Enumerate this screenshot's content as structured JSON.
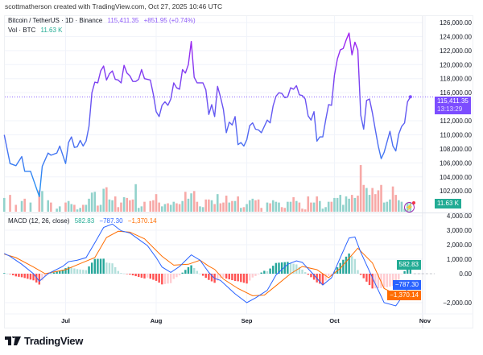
{
  "credit": "scottmatherson created with TradingView.com, Oct 27, 2025 10:46 UTC",
  "legend": {
    "symbol": "Bitcoin / TetherUS · 1D · Binance",
    "price": "115,411.35",
    "change": "+851.95 (+0.74%)",
    "vol_label": "Vol · BTC",
    "vol_value": "11.63 K",
    "macd_label": "MACD (12, 26, close)",
    "macd_hist": "582.83",
    "macd_line": "−787.30",
    "macd_signal": "−1,370.14"
  },
  "tags": {
    "price": "115,411.35",
    "countdown": "13:13:29",
    "volume": "11.63 K",
    "hist": "582.83",
    "macd": "−787.30",
    "signal": "−1,370.14"
  },
  "brand": "TradingView",
  "colors": {
    "line_high": "#a31ef0",
    "line_low": "#2196f3",
    "up_vol": "#92d2cc",
    "down_vol": "#f7a9a7",
    "macd": "#2962ff",
    "signal": "#ff6d00",
    "hist_up_strong": "#26a69a",
    "hist_up_weak": "#b2dfdb",
    "hist_down_strong": "#ff5252",
    "hist_down_weak": "#ffcdd2",
    "price_tag": "#7c4dff",
    "vol_tag": "#22ab94"
  },
  "icons": {
    "alert": "lightning-bolt-icon"
  },
  "chart_data": {
    "type": "line",
    "price_axis": {
      "ticks": [
        "126,000.00",
        "124,000.00",
        "122,000.00",
        "120,000.00",
        "118,000.00",
        "116,000.00",
        "112,000.00",
        "110,000.00",
        "108,000.00",
        "106,000.00",
        "104,000.00",
        "102,000.00"
      ],
      "range": [
        100000,
        127000
      ]
    },
    "macd_axis": {
      "ticks": [
        "4,000.00",
        "3,000.00",
        "2,000.00",
        "1,000.00",
        "0.00",
        "−2,000.00"
      ],
      "range": [
        -2500,
        4000
      ]
    },
    "x_ticks": [
      "Jul",
      "Aug",
      "Sep",
      "Oct",
      "Nov"
    ],
    "x_tick_dates": [
      "2025-07-01",
      "2025-08-01",
      "2025-09-01",
      "2025-10-01",
      "2025-11-01"
    ],
    "x_range": [
      "2025-06-10",
      "2025-11-05"
    ],
    "grid": true,
    "price": [
      [
        "2025-06-10",
        110000,
        18
      ],
      [
        "2025-06-12",
        105900,
        22
      ],
      [
        "2025-06-14",
        105600,
        9
      ],
      [
        "2025-06-16",
        106900,
        14
      ],
      [
        "2025-06-17",
        104800,
        17
      ],
      [
        "2025-06-19",
        104800,
        12
      ],
      [
        "2025-06-22",
        101200,
        28
      ],
      [
        "2025-06-23",
        105500,
        27
      ],
      [
        "2025-06-25",
        107400,
        15
      ],
      [
        "2025-06-26",
        107100,
        12
      ],
      [
        "2025-06-28",
        107400,
        4
      ],
      [
        "2025-06-29",
        108400,
        7
      ],
      [
        "2025-07-01",
        105900,
        12
      ],
      [
        "2025-07-02",
        108900,
        14
      ],
      [
        "2025-07-03",
        109700,
        10
      ],
      [
        "2025-07-04",
        108200,
        9
      ],
      [
        "2025-07-05",
        108300,
        3
      ],
      [
        "2025-07-06",
        109200,
        5
      ],
      [
        "2025-07-07",
        108400,
        9
      ],
      [
        "2025-07-08",
        109100,
        9
      ],
      [
        "2025-07-09",
        111200,
        17
      ],
      [
        "2025-07-10",
        116000,
        25
      ],
      [
        "2025-07-11",
        117500,
        26
      ],
      [
        "2025-07-12",
        117400,
        8
      ],
      [
        "2025-07-13",
        119100,
        9
      ],
      [
        "2025-07-14",
        119800,
        30
      ],
      [
        "2025-07-15",
        117800,
        32
      ],
      [
        "2025-07-16",
        118700,
        16
      ],
      [
        "2025-07-17",
        119100,
        15
      ],
      [
        "2025-07-18",
        117900,
        20
      ],
      [
        "2025-07-19",
        117800,
        6
      ],
      [
        "2025-07-20",
        117400,
        12
      ],
      [
        "2025-07-21",
        119900,
        19
      ],
      [
        "2025-07-22",
        118800,
        18
      ],
      [
        "2025-07-23",
        118400,
        15
      ],
      [
        "2025-07-24",
        117600,
        16
      ],
      [
        "2025-07-25",
        117600,
        36
      ],
      [
        "2025-07-26",
        117900,
        5
      ],
      [
        "2025-07-27",
        119300,
        7
      ],
      [
        "2025-07-28",
        118000,
        13
      ],
      [
        "2025-07-30",
        117800,
        14
      ],
      [
        "2025-07-31",
        115800,
        15
      ],
      [
        "2025-08-01",
        113300,
        23
      ],
      [
        "2025-08-02",
        112600,
        12
      ],
      [
        "2025-08-03",
        114200,
        7
      ],
      [
        "2025-08-04",
        114700,
        10
      ],
      [
        "2025-08-05",
        114200,
        11
      ],
      [
        "2025-08-06",
        115100,
        9
      ],
      [
        "2025-08-07",
        117400,
        13
      ],
      [
        "2025-08-08",
        116700,
        11
      ],
      [
        "2025-08-09",
        116500,
        10
      ],
      [
        "2025-08-10",
        119300,
        14
      ],
      [
        "2025-08-11",
        118800,
        26
      ],
      [
        "2025-08-12",
        120000,
        17
      ],
      [
        "2025-08-13",
        123300,
        24
      ],
      [
        "2025-08-14",
        118200,
        27
      ],
      [
        "2025-08-15",
        117400,
        13
      ],
      [
        "2025-08-16",
        117400,
        7
      ],
      [
        "2025-08-17",
        117400,
        6
      ],
      [
        "2025-08-18",
        116400,
        16
      ],
      [
        "2025-08-19",
        112900,
        16
      ],
      [
        "2025-08-20",
        114300,
        15
      ],
      [
        "2025-08-21",
        112600,
        10
      ],
      [
        "2025-08-22",
        116900,
        23
      ],
      [
        "2025-08-23",
        115400,
        11
      ],
      [
        "2025-08-24",
        113600,
        12
      ],
      [
        "2025-08-25",
        110300,
        21
      ],
      [
        "2025-08-26",
        111800,
        12
      ],
      [
        "2025-08-27",
        111400,
        14
      ],
      [
        "2025-08-28",
        112600,
        14
      ],
      [
        "2025-08-29",
        108600,
        20
      ],
      [
        "2025-08-30",
        108900,
        5
      ],
      [
        "2025-08-31",
        108400,
        6
      ],
      [
        "2025-09-01",
        109300,
        10
      ],
      [
        "2025-09-02",
        111300,
        15
      ],
      [
        "2025-09-03",
        111700,
        17
      ],
      [
        "2025-09-04",
        110800,
        15
      ],
      [
        "2025-09-05",
        110700,
        16
      ],
      [
        "2025-09-06",
        110300,
        5
      ],
      [
        "2025-09-08",
        112100,
        12
      ],
      [
        "2025-09-09",
        111700,
        11
      ],
      [
        "2025-09-10",
        114100,
        15
      ],
      [
        "2025-09-11",
        115500,
        13
      ],
      [
        "2025-09-12",
        116000,
        12
      ],
      [
        "2025-09-13",
        115900,
        6
      ],
      [
        "2025-09-14",
        115300,
        5
      ],
      [
        "2025-09-15",
        115400,
        13
      ],
      [
        "2025-09-16",
        116700,
        13
      ],
      [
        "2025-09-17",
        116500,
        19
      ],
      [
        "2025-09-18",
        117000,
        14
      ],
      [
        "2025-09-19",
        115700,
        12
      ],
      [
        "2025-09-20",
        115600,
        4
      ],
      [
        "2025-09-21",
        115100,
        3
      ],
      [
        "2025-09-22",
        112700,
        20
      ],
      [
        "2025-09-23",
        112100,
        12
      ],
      [
        "2025-09-24",
        113300,
        12
      ],
      [
        "2025-09-25",
        109100,
        20
      ],
      [
        "2025-09-26",
        109700,
        14
      ],
      [
        "2025-09-27",
        109700,
        4
      ],
      [
        "2025-09-28",
        112100,
        6
      ],
      [
        "2025-09-29",
        114300,
        13
      ],
      [
        "2025-09-30",
        114200,
        13
      ],
      [
        "2025-10-01",
        118500,
        18
      ],
      [
        "2025-10-02",
        120800,
        18
      ],
      [
        "2025-10-03",
        122100,
        22
      ],
      [
        "2025-10-04",
        122300,
        9
      ],
      [
        "2025-10-05",
        123500,
        20
      ],
      [
        "2025-10-06",
        124500,
        17
      ],
      [
        "2025-10-07",
        121400,
        22
      ],
      [
        "2025-10-08",
        123200,
        18
      ],
      [
        "2025-10-09",
        122100,
        21
      ],
      [
        "2025-10-10",
        112800,
        61
      ],
      [
        "2025-10-11",
        110800,
        35
      ],
      [
        "2025-10-12",
        114900,
        31
      ],
      [
        "2025-10-13",
        115100,
        22
      ],
      [
        "2025-10-14",
        113100,
        31
      ],
      [
        "2025-10-15",
        110700,
        23
      ],
      [
        "2025-10-16",
        108400,
        28
      ],
      [
        "2025-10-17",
        106600,
        35
      ],
      [
        "2025-10-18",
        107500,
        12
      ],
      [
        "2025-10-19",
        109000,
        13
      ],
      [
        "2025-10-20",
        110500,
        16
      ],
      [
        "2025-10-21",
        108400,
        33
      ],
      [
        "2025-10-22",
        107700,
        22
      ],
      [
        "2025-10-23",
        110100,
        15
      ],
      [
        "2025-10-24",
        111200,
        13
      ],
      [
        "2025-10-25",
        111700,
        4
      ],
      [
        "2025-10-26",
        114700,
        12
      ],
      [
        "2025-10-27",
        115411.35,
        11.63
      ]
    ],
    "price_columns": [
      "date",
      "close",
      "volume_k_btc"
    ],
    "macd": [
      [
        "2025-06-10",
        1390
      ],
      [
        "2025-06-12",
        1200
      ],
      [
        "2025-06-16",
        650
      ],
      [
        "2025-06-20",
        0
      ],
      [
        "2025-06-22",
        -520
      ],
      [
        "2025-06-25",
        0
      ],
      [
        "2025-06-30",
        500
      ],
      [
        "2025-07-02",
        830
      ],
      [
        "2025-07-05",
        930
      ],
      [
        "2025-07-08",
        1110
      ],
      [
        "2025-07-11",
        2130
      ],
      [
        "2025-07-14",
        3190
      ],
      [
        "2025-07-17",
        3430
      ],
      [
        "2025-07-20",
        2960
      ],
      [
        "2025-07-23",
        2810
      ],
      [
        "2025-07-26",
        2370
      ],
      [
        "2025-07-29",
        1940
      ],
      [
        "2025-08-01",
        1110
      ],
      [
        "2025-08-03",
        460
      ],
      [
        "2025-08-06",
        90
      ],
      [
        "2025-08-09",
        500
      ],
      [
        "2025-08-13",
        1300
      ],
      [
        "2025-08-16",
        930
      ],
      [
        "2025-08-19",
        90
      ],
      [
        "2025-08-21",
        -330
      ],
      [
        "2025-08-23",
        -460
      ],
      [
        "2025-08-26",
        -1020
      ],
      [
        "2025-08-28",
        -1390
      ],
      [
        "2025-09-01",
        -2000
      ],
      [
        "2025-09-04",
        -1670
      ],
      [
        "2025-09-08",
        -1150
      ],
      [
        "2025-09-11",
        -90
      ],
      [
        "2025-09-15",
        650
      ],
      [
        "2025-09-18",
        890
      ],
      [
        "2025-09-20",
        780
      ],
      [
        "2025-09-24",
        -90
      ],
      [
        "2025-09-27",
        -780
      ],
      [
        "2025-09-30",
        -280
      ],
      [
        "2025-10-03",
        1110
      ],
      [
        "2025-10-06",
        2460
      ],
      [
        "2025-10-08",
        2540
      ],
      [
        "2025-10-10",
        1480
      ],
      [
        "2025-10-14",
        -280
      ],
      [
        "2025-10-18",
        -2000
      ],
      [
        "2025-10-22",
        -2220
      ],
      [
        "2025-10-27",
        -787.3
      ]
    ],
    "signal": [
      [
        "2025-06-10",
        1350
      ],
      [
        "2025-06-14",
        1110
      ],
      [
        "2025-06-20",
        460
      ],
      [
        "2025-06-24",
        0
      ],
      [
        "2025-07-01",
        280
      ],
      [
        "2025-07-06",
        700
      ],
      [
        "2025-07-11",
        1110
      ],
      [
        "2025-07-15",
        2500
      ],
      [
        "2025-07-19",
        2930
      ],
      [
        "2025-07-23",
        2870
      ],
      [
        "2025-07-28",
        2410
      ],
      [
        "2025-08-03",
        1200
      ],
      [
        "2025-08-07",
        590
      ],
      [
        "2025-08-12",
        650
      ],
      [
        "2025-08-16",
        930
      ],
      [
        "2025-08-19",
        520
      ],
      [
        "2025-08-21",
        300
      ],
      [
        "2025-08-24",
        -370
      ],
      [
        "2025-08-29",
        -1020
      ],
      [
        "2025-09-03",
        -1520
      ],
      [
        "2025-09-07",
        -1480
      ],
      [
        "2025-09-11",
        -830
      ],
      [
        "2025-09-16",
        0
      ],
      [
        "2025-09-20",
        500
      ],
      [
        "2025-09-25",
        280
      ],
      [
        "2025-09-29",
        -280
      ],
      [
        "2025-10-03",
        370
      ],
      [
        "2025-10-09",
        1760
      ],
      [
        "2025-10-14",
        740
      ],
      [
        "2025-10-18",
        -1020
      ],
      [
        "2025-10-24",
        -1630
      ],
      [
        "2025-10-27",
        -1370.14
      ]
    ]
  }
}
